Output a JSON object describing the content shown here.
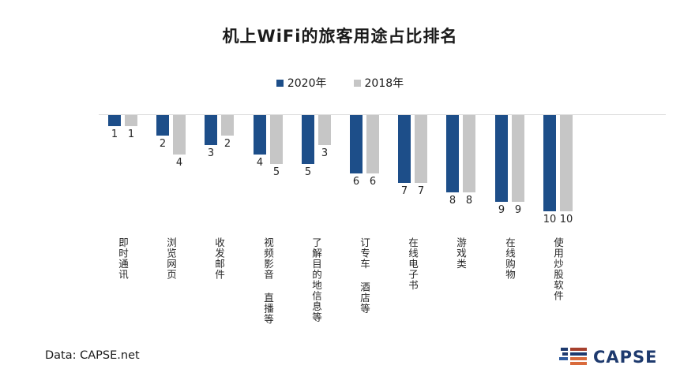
{
  "title": "机上WiFi的旅客用途占比排名",
  "legend": [
    {
      "label": "2020年",
      "color": "#1d4e89"
    },
    {
      "label": "2018年",
      "color": "#c6c6c6"
    }
  ],
  "footer": {
    "source": "Data: CAPSE.net"
  },
  "logo": {
    "text": "CAPSE"
  },
  "colors": {
    "series_2020": "#1d4e89",
    "series_2018": "#c6c6c6",
    "baseline": "#d9d9d9",
    "text": "#262626",
    "logo_navy": "#1e3a6e",
    "logo_blue": "#2e5b9f",
    "logo_red": "#a6402d",
    "logo_orange": "#d96a3b"
  },
  "chart_data": {
    "type": "bar",
    "orientation": "hanging-columns-from-top-baseline",
    "note": "bar length encodes rank; rank number shown below each bar",
    "title": "机上WiFi的旅客用途占比排名",
    "categories": [
      "即时通讯",
      "浏览网页",
      "收发邮件",
      "视频影音 直播等",
      "了解目的地信息等",
      "订专车 酒店等",
      "在线电子书",
      "游戏类",
      "在线购物",
      "使用炒股软件"
    ],
    "series": [
      {
        "name": "2020年",
        "color": "#1d4e89",
        "values": [
          1,
          2,
          3,
          4,
          5,
          6,
          7,
          8,
          9,
          10
        ]
      },
      {
        "name": "2018年",
        "color": "#c6c6c6",
        "values": [
          1,
          4,
          2,
          5,
          3,
          6,
          7,
          8,
          9,
          10
        ]
      }
    ],
    "value_range": [
      1,
      10
    ],
    "legend_position": "top-center",
    "grid": false
  }
}
